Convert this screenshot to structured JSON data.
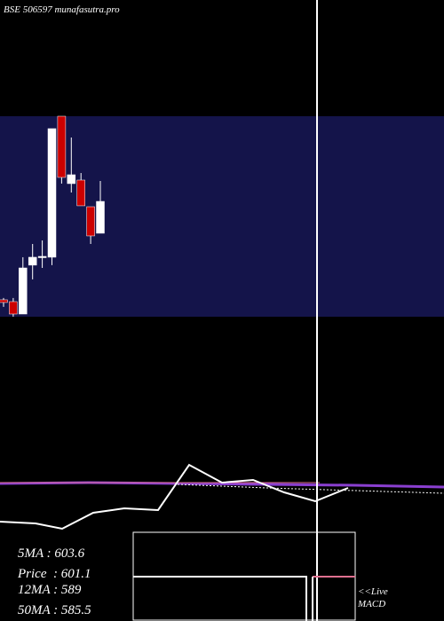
{
  "chart_data": {
    "type": "candlestick",
    "title": "BSE 506597 munafasutra.pro",
    "ylim": [
      480,
      690
    ],
    "up_color": "#ffffff",
    "down_color": "#cc0000",
    "band_color": "#14144a",
    "candles": [
      {
        "open": 497.7,
        "high": 499.6,
        "low": 490.3,
        "close": 494.9
      },
      {
        "open": 495.8,
        "high": 499.6,
        "low": 480.0,
        "close": 482.8
      },
      {
        "open": 482.8,
        "high": 542.3,
        "low": 482.8,
        "close": 531.1
      },
      {
        "open": 534.0,
        "high": 556.2,
        "low": 519.1,
        "close": 542.3
      },
      {
        "open": 542.3,
        "high": 559.9,
        "low": 531.1,
        "close": 543.2
      },
      {
        "open": 542.3,
        "high": 677.0,
        "low": 534.0,
        "close": 677.0
      },
      {
        "open": 690.0,
        "high": 690.0,
        "low": 619.4,
        "close": 625.9
      },
      {
        "open": 619.4,
        "high": 667.7,
        "low": 610.1,
        "close": 628.7
      },
      {
        "open": 623.1,
        "high": 630.5,
        "low": 596.2,
        "close": 596.2
      },
      {
        "open": 595.2,
        "high": 595.2,
        "low": 556.2,
        "close": 564.6
      },
      {
        "open": 567.4,
        "high": 622.2,
        "low": 567.4,
        "close": 600.8
      }
    ],
    "ma_labels": [
      "5MA : 603.6",
      "Price  : 601.1",
      "12MA : 589",
      "50MA : 585.5"
    ],
    "macd_labels": [
      "<<Live",
      "MACD"
    ]
  }
}
